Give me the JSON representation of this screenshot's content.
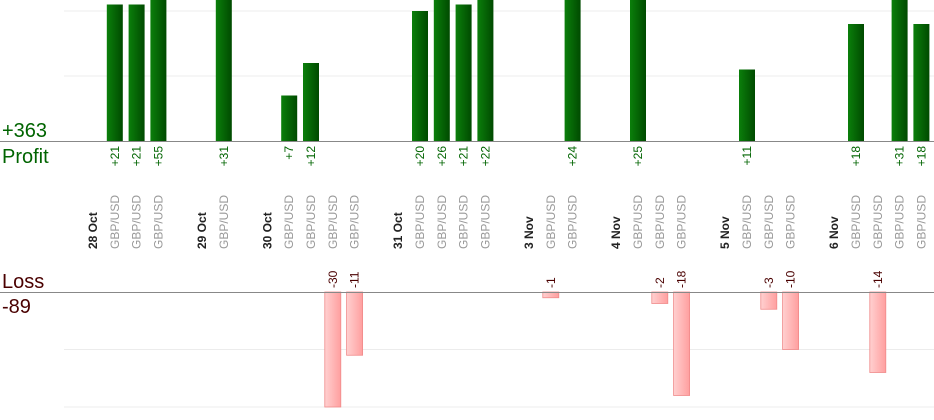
{
  "chart_data": {
    "type": "bar",
    "profit_label": "Profit",
    "profit_total": "+363",
    "loss_label": "Loss",
    "loss_total": "-89",
    "colors": {
      "profit": "#006400",
      "loss": "#ffb0b0",
      "loss_text": "#4a0000",
      "profit_text": "#006400"
    },
    "grid": true,
    "profit_grid_step": 10,
    "loss_grid_step": 10,
    "slots": [
      {
        "kind": "date",
        "label": "28 Oct"
      },
      {
        "kind": "trade",
        "label": "GBP/USD",
        "value": 21
      },
      {
        "kind": "trade",
        "label": "GBP/USD",
        "value": 21
      },
      {
        "kind": "trade",
        "label": "GBP/USD",
        "value": 55
      },
      {
        "kind": "gap"
      },
      {
        "kind": "date",
        "label": "29 Oct"
      },
      {
        "kind": "trade",
        "label": "GBP/USD",
        "value": 31
      },
      {
        "kind": "gap"
      },
      {
        "kind": "date",
        "label": "30 Oct"
      },
      {
        "kind": "trade",
        "label": "GBP/USD",
        "value": 7
      },
      {
        "kind": "trade",
        "label": "GBP/USD",
        "value": 12
      },
      {
        "kind": "trade",
        "label": "GBP/USD",
        "value": -30
      },
      {
        "kind": "trade",
        "label": "GBP/USD",
        "value": -11
      },
      {
        "kind": "gap"
      },
      {
        "kind": "date",
        "label": "31 Oct"
      },
      {
        "kind": "trade",
        "label": "GBP/USD",
        "value": 20
      },
      {
        "kind": "trade",
        "label": "GBP/USD",
        "value": 26
      },
      {
        "kind": "trade",
        "label": "GBP/USD",
        "value": 21
      },
      {
        "kind": "trade",
        "label": "GBP/USD",
        "value": 22
      },
      {
        "kind": "gap"
      },
      {
        "kind": "date",
        "label": "3 Nov"
      },
      {
        "kind": "trade",
        "label": "GBP/USD",
        "value": -1
      },
      {
        "kind": "trade",
        "label": "GBP/USD",
        "value": 24
      },
      {
        "kind": "gap"
      },
      {
        "kind": "date",
        "label": "4 Nov"
      },
      {
        "kind": "trade",
        "label": "GBP/USD",
        "value": 25
      },
      {
        "kind": "trade",
        "label": "GBP/USD",
        "value": -2
      },
      {
        "kind": "trade",
        "label": "GBP/USD",
        "value": -18
      },
      {
        "kind": "gap"
      },
      {
        "kind": "date",
        "label": "5 Nov"
      },
      {
        "kind": "trade",
        "label": "GBP/USD",
        "value": 11
      },
      {
        "kind": "trade",
        "label": "GBP/USD",
        "value": -3
      },
      {
        "kind": "trade",
        "label": "GBP/USD",
        "value": -10
      },
      {
        "kind": "gap"
      },
      {
        "kind": "date",
        "label": "6 Nov"
      },
      {
        "kind": "trade",
        "label": "GBP/USD",
        "value": 18
      },
      {
        "kind": "trade",
        "label": "GBP/USD",
        "value": -14
      },
      {
        "kind": "trade",
        "label": "GBP/USD",
        "value": 31
      },
      {
        "kind": "trade",
        "label": "GBP/USD",
        "value": 18
      }
    ]
  }
}
